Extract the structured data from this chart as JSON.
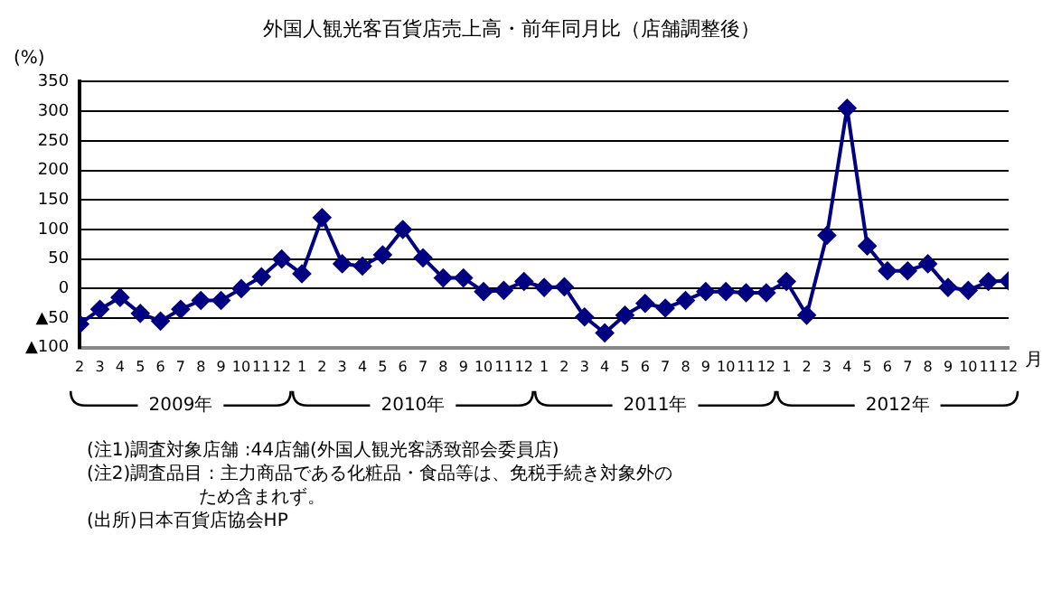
{
  "chart_data": {
    "type": "line",
    "title": "外国人観光客百貨店売上高・前年同月比（店舗調整後）",
    "ylabel": "(%)",
    "xlabel": "月",
    "x": [
      "2009-02",
      "2009-03",
      "2009-04",
      "2009-05",
      "2009-06",
      "2009-07",
      "2009-08",
      "2009-09",
      "2009-10",
      "2009-11",
      "2009-12",
      "2010-01",
      "2010-02",
      "2010-03",
      "2010-04",
      "2010-05",
      "2010-06",
      "2010-07",
      "2010-08",
      "2010-09",
      "2010-10",
      "2010-11",
      "2010-12",
      "2011-01",
      "2011-02",
      "2011-03",
      "2011-04",
      "2011-05",
      "2011-06",
      "2011-07",
      "2011-08",
      "2011-09",
      "2011-10",
      "2011-11",
      "2011-12",
      "2012-01",
      "2012-02",
      "2012-03",
      "2012-04",
      "2012-05",
      "2012-06",
      "2012-07",
      "2012-08",
      "2012-09",
      "2012-10",
      "2012-11",
      "2012-12"
    ],
    "series": [
      {
        "color": "#000080",
        "values": [
          -60,
          -35,
          -15,
          -42,
          -55,
          -35,
          -20,
          -20,
          0,
          20,
          50,
          25,
          120,
          42,
          38,
          57,
          100,
          52,
          18,
          18,
          -5,
          -3,
          12,
          2,
          3,
          -48,
          -75,
          -45,
          -25,
          -33,
          -20,
          -5,
          -5,
          -7,
          -7,
          12,
          -45,
          90,
          305,
          72,
          30,
          30,
          42,
          2,
          -3,
          12,
          13
        ]
      }
    ],
    "xlim": [
      "2009-02",
      "2012-12"
    ],
    "xticks": [
      {
        "value": "2009-02",
        "label": "2"
      },
      {
        "value": "2009-03",
        "label": "3"
      },
      {
        "value": "2009-04",
        "label": "4"
      },
      {
        "value": "2009-05",
        "label": "5"
      },
      {
        "value": "2009-06",
        "label": "6"
      },
      {
        "value": "2009-07",
        "label": "7"
      },
      {
        "value": "2009-08",
        "label": "8"
      },
      {
        "value": "2009-09",
        "label": "9"
      },
      {
        "value": "2009-10",
        "label": "10"
      },
      {
        "value": "2009-11",
        "label": "11"
      },
      {
        "value": "2009-12",
        "label": "12"
      },
      {
        "value": "2010-01",
        "label": "1"
      },
      {
        "value": "2010-02",
        "label": "2"
      },
      {
        "value": "2010-03",
        "label": "3"
      },
      {
        "value": "2010-04",
        "label": "4"
      },
      {
        "value": "2010-05",
        "label": "5"
      },
      {
        "value": "2010-06",
        "label": "6"
      },
      {
        "value": "2010-07",
        "label": "7"
      },
      {
        "value": "2010-08",
        "label": "8"
      },
      {
        "value": "2010-09",
        "label": "9"
      },
      {
        "value": "2010-10",
        "label": "10"
      },
      {
        "value": "2010-11",
        "label": "11"
      },
      {
        "value": "2010-12",
        "label": "12"
      },
      {
        "value": "2011-01",
        "label": "1"
      },
      {
        "value": "2011-02",
        "label": "2"
      },
      {
        "value": "2011-03",
        "label": "3"
      },
      {
        "value": "2011-04",
        "label": "4"
      },
      {
        "value": "2011-05",
        "label": "5"
      },
      {
        "value": "2011-06",
        "label": "6"
      },
      {
        "value": "2011-07",
        "label": "7"
      },
      {
        "value": "2011-08",
        "label": "8"
      },
      {
        "value": "2011-09",
        "label": "9"
      },
      {
        "value": "2011-10",
        "label": "10"
      },
      {
        "value": "2011-11",
        "label": "11"
      },
      {
        "value": "2011-12",
        "label": "12"
      },
      {
        "value": "2012-01",
        "label": "1"
      },
      {
        "value": "2012-02",
        "label": "2"
      },
      {
        "value": "2012-03",
        "label": "3"
      },
      {
        "value": "2012-04",
        "label": "4"
      },
      {
        "value": "2012-05",
        "label": "5"
      },
      {
        "value": "2012-06",
        "label": "6"
      },
      {
        "value": "2012-07",
        "label": "7"
      },
      {
        "value": "2012-08",
        "label": "8"
      },
      {
        "value": "2012-09",
        "label": "9"
      },
      {
        "value": "2012-10",
        "label": "10"
      },
      {
        "value": "2012-11",
        "label": "11"
      },
      {
        "value": "2012-12",
        "label": "12"
      }
    ],
    "ylim": [
      -100,
      350
    ],
    "yticks": [
      {
        "value": -100,
        "label": "▲100"
      },
      {
        "value": -50,
        "label": "▲50"
      },
      0,
      50,
      100,
      150,
      200,
      250,
      300,
      350
    ],
    "grid": "y",
    "legend": false,
    "marker": "diamond",
    "line_style": "solid",
    "annotations": [
      "2009年",
      "2010年",
      "2011年",
      "2012年",
      "(注1)調査対象店舗 :44店舗(外国人観光客誘致部会委員店)",
      "(注2)調査品目 : 主力商品である化粧品・食品等は、免税手続き対象外のため含まれず。",
      "(出所)日本百貨店協会HP"
    ]
  }
}
